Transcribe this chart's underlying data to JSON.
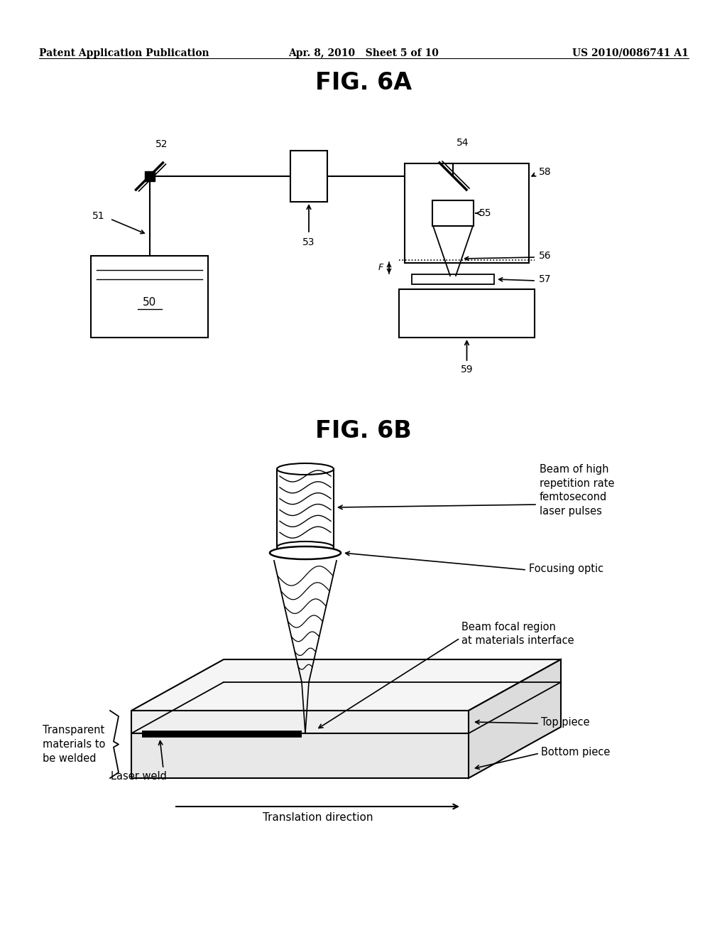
{
  "background_color": "#ffffff",
  "header_left": "Patent Application Publication",
  "header_center": "Apr. 8, 2010   Sheet 5 of 10",
  "header_right": "US 2010/0086741 A1",
  "fig6a_title": "FIG. 6A",
  "fig6b_title": "FIG. 6B"
}
